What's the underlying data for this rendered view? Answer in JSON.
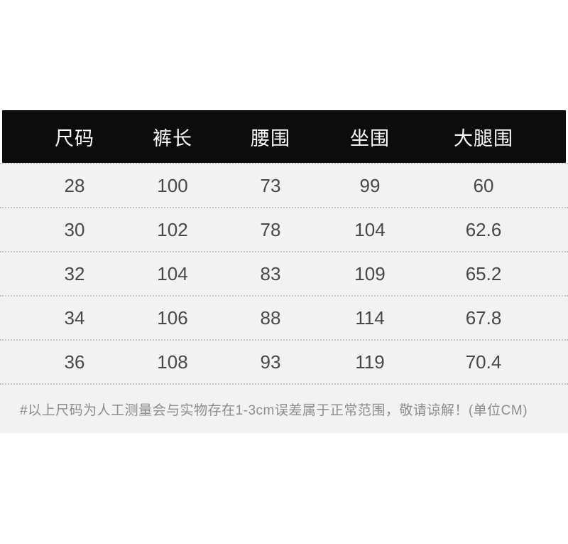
{
  "chart_data": {
    "type": "table",
    "title": "",
    "columns": [
      "尺码",
      "裤长",
      "腰围",
      "坐围",
      "大腿围"
    ],
    "rows": [
      [
        "28",
        "100",
        "73",
        "99",
        "60"
      ],
      [
        "30",
        "102",
        "78",
        "104",
        "62.6"
      ],
      [
        "32",
        "104",
        "83",
        "109",
        "65.2"
      ],
      [
        "34",
        "106",
        "88",
        "114",
        "67.8"
      ],
      [
        "36",
        "108",
        "93",
        "119",
        "70.4"
      ]
    ],
    "footnote": "#以上尺码为人工测量会与实物存在1-3cm误差属于正常范围，敬请谅解！(单位CM)",
    "unit": "CM"
  },
  "colors": {
    "page_bg": "#ffffff",
    "header_bg": "#0c0c0c",
    "header_text": "#ffffff",
    "row_bg": "#f2f2f2",
    "cell_text": "#474747",
    "divider": "#c6c6c6",
    "footnote_text": "#8c8c8c"
  }
}
